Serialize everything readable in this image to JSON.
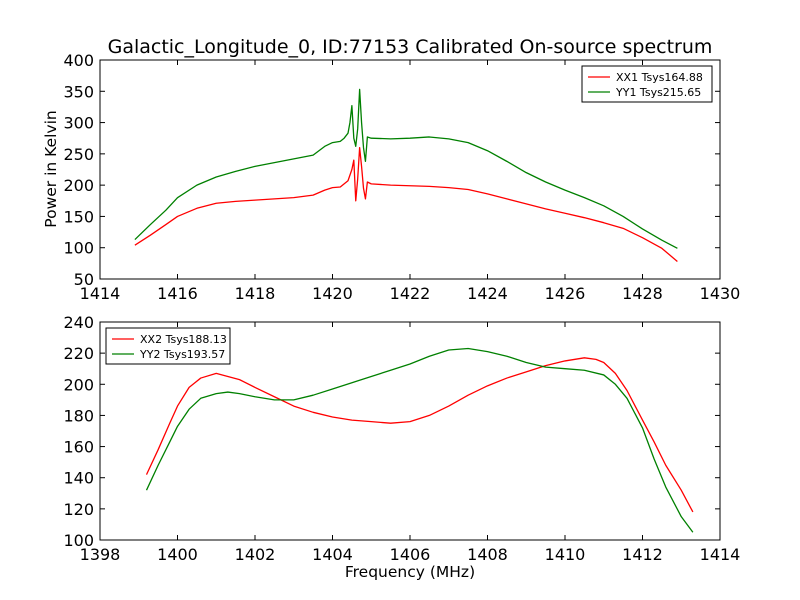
{
  "figure": {
    "title": "Galactic_Longitude_0, ID:77153 Calibrated On-source spectrum",
    "xlabel": "Frequency (MHz)",
    "top_ylabel": "Power in Kelvin"
  },
  "chart_data": [
    {
      "type": "line",
      "title": "Galactic_Longitude_0, ID:77153 Calibrated On-source spectrum",
      "xlabel": "",
      "ylabel": "Power in Kelvin",
      "xlim": [
        1414,
        1430
      ],
      "ylim": [
        50,
        400
      ],
      "xticks": [
        1414,
        1416,
        1418,
        1420,
        1422,
        1424,
        1426,
        1428,
        1430
      ],
      "yticks": [
        50,
        100,
        150,
        200,
        250,
        300,
        350,
        400
      ],
      "grid": false,
      "legend_position": "top-right",
      "series": [
        {
          "name": "XX1 Tsys164.88",
          "color": "#ff0000",
          "x": [
            1414.9,
            1415.3,
            1415.7,
            1416.0,
            1416.5,
            1417.0,
            1417.5,
            1418.0,
            1418.5,
            1419.0,
            1419.5,
            1419.8,
            1420.0,
            1420.2,
            1420.4,
            1420.5,
            1420.55,
            1420.6,
            1420.65,
            1420.7,
            1420.75,
            1420.8,
            1420.85,
            1420.9,
            1421.0,
            1421.5,
            1422.0,
            1422.5,
            1423.0,
            1423.5,
            1424.0,
            1424.5,
            1425.0,
            1425.5,
            1426.0,
            1426.5,
            1427.0,
            1427.5,
            1428.0,
            1428.5,
            1428.9
          ],
          "values": [
            104,
            120,
            137,
            150,
            163,
            171,
            174,
            176,
            178,
            180,
            184,
            192,
            196,
            197,
            207,
            225,
            240,
            175,
            210,
            260,
            230,
            195,
            178,
            205,
            202,
            200,
            199,
            198,
            196,
            193,
            186,
            178,
            170,
            162,
            155,
            148,
            140,
            131,
            116,
            99,
            78
          ]
        },
        {
          "name": "YY1 Tsys215.65",
          "color": "#008000",
          "x": [
            1414.9,
            1415.3,
            1415.7,
            1416.0,
            1416.5,
            1417.0,
            1417.5,
            1418.0,
            1418.5,
            1419.0,
            1419.5,
            1419.8,
            1420.0,
            1420.2,
            1420.3,
            1420.4,
            1420.45,
            1420.5,
            1420.55,
            1420.6,
            1420.65,
            1420.7,
            1420.75,
            1420.8,
            1420.85,
            1420.9,
            1421.0,
            1421.5,
            1422.0,
            1422.5,
            1423.0,
            1423.5,
            1424.0,
            1424.5,
            1425.0,
            1425.5,
            1426.0,
            1426.5,
            1427.0,
            1427.5,
            1428.0,
            1428.5,
            1428.9
          ],
          "values": [
            113,
            137,
            160,
            180,
            200,
            213,
            222,
            230,
            236,
            242,
            248,
            262,
            268,
            270,
            275,
            283,
            300,
            327,
            275,
            262,
            290,
            353,
            300,
            260,
            238,
            277,
            275,
            274,
            275,
            277,
            274,
            268,
            255,
            238,
            220,
            205,
            192,
            180,
            167,
            150,
            130,
            112,
            99
          ]
        }
      ]
    },
    {
      "type": "line",
      "title": "",
      "xlabel": "Frequency (MHz)",
      "ylabel": "",
      "xlim": [
        1398,
        1414
      ],
      "ylim": [
        100,
        240
      ],
      "xticks": [
        1398,
        1400,
        1402,
        1404,
        1406,
        1408,
        1410,
        1412,
        1414
      ],
      "yticks": [
        100,
        120,
        140,
        160,
        180,
        200,
        220,
        240
      ],
      "grid": false,
      "legend_position": "top-left",
      "series": [
        {
          "name": "XX2 Tsys188.13",
          "color": "#ff0000",
          "x": [
            1399.2,
            1399.5,
            1399.8,
            1400.0,
            1400.3,
            1400.6,
            1401.0,
            1401.3,
            1401.6,
            1402.0,
            1402.5,
            1403.0,
            1403.5,
            1404.0,
            1404.5,
            1405.0,
            1405.5,
            1406.0,
            1406.5,
            1407.0,
            1407.5,
            1408.0,
            1408.5,
            1409.0,
            1409.5,
            1410.0,
            1410.5,
            1410.8,
            1411.0,
            1411.3,
            1411.6,
            1412.0,
            1412.3,
            1412.6,
            1413.0,
            1413.3
          ],
          "values": [
            142,
            158,
            175,
            186,
            198,
            204,
            207,
            205,
            203,
            198,
            192,
            186,
            182,
            179,
            177,
            176,
            175,
            176,
            180,
            186,
            193,
            199,
            204,
            208,
            212,
            215,
            217,
            216,
            214,
            207,
            196,
            177,
            163,
            148,
            132,
            118
          ]
        },
        {
          "name": "YY2 Tsys193.57",
          "color": "#008000",
          "x": [
            1399.2,
            1399.5,
            1399.8,
            1400.0,
            1400.3,
            1400.6,
            1401.0,
            1401.3,
            1401.6,
            1402.0,
            1402.5,
            1403.0,
            1403.5,
            1404.0,
            1404.5,
            1405.0,
            1405.5,
            1406.0,
            1406.5,
            1407.0,
            1407.5,
            1408.0,
            1408.5,
            1409.0,
            1409.5,
            1410.0,
            1410.5,
            1411.0,
            1411.3,
            1411.6,
            1412.0,
            1412.3,
            1412.6,
            1413.0,
            1413.3
          ],
          "values": [
            132,
            148,
            163,
            173,
            184,
            191,
            194,
            195,
            194,
            192,
            190,
            190,
            193,
            197,
            201,
            205,
            209,
            213,
            218,
            222,
            223,
            221,
            218,
            214,
            211,
            210,
            209,
            206,
            200,
            191,
            172,
            152,
            134,
            115,
            105
          ]
        }
      ]
    }
  ]
}
